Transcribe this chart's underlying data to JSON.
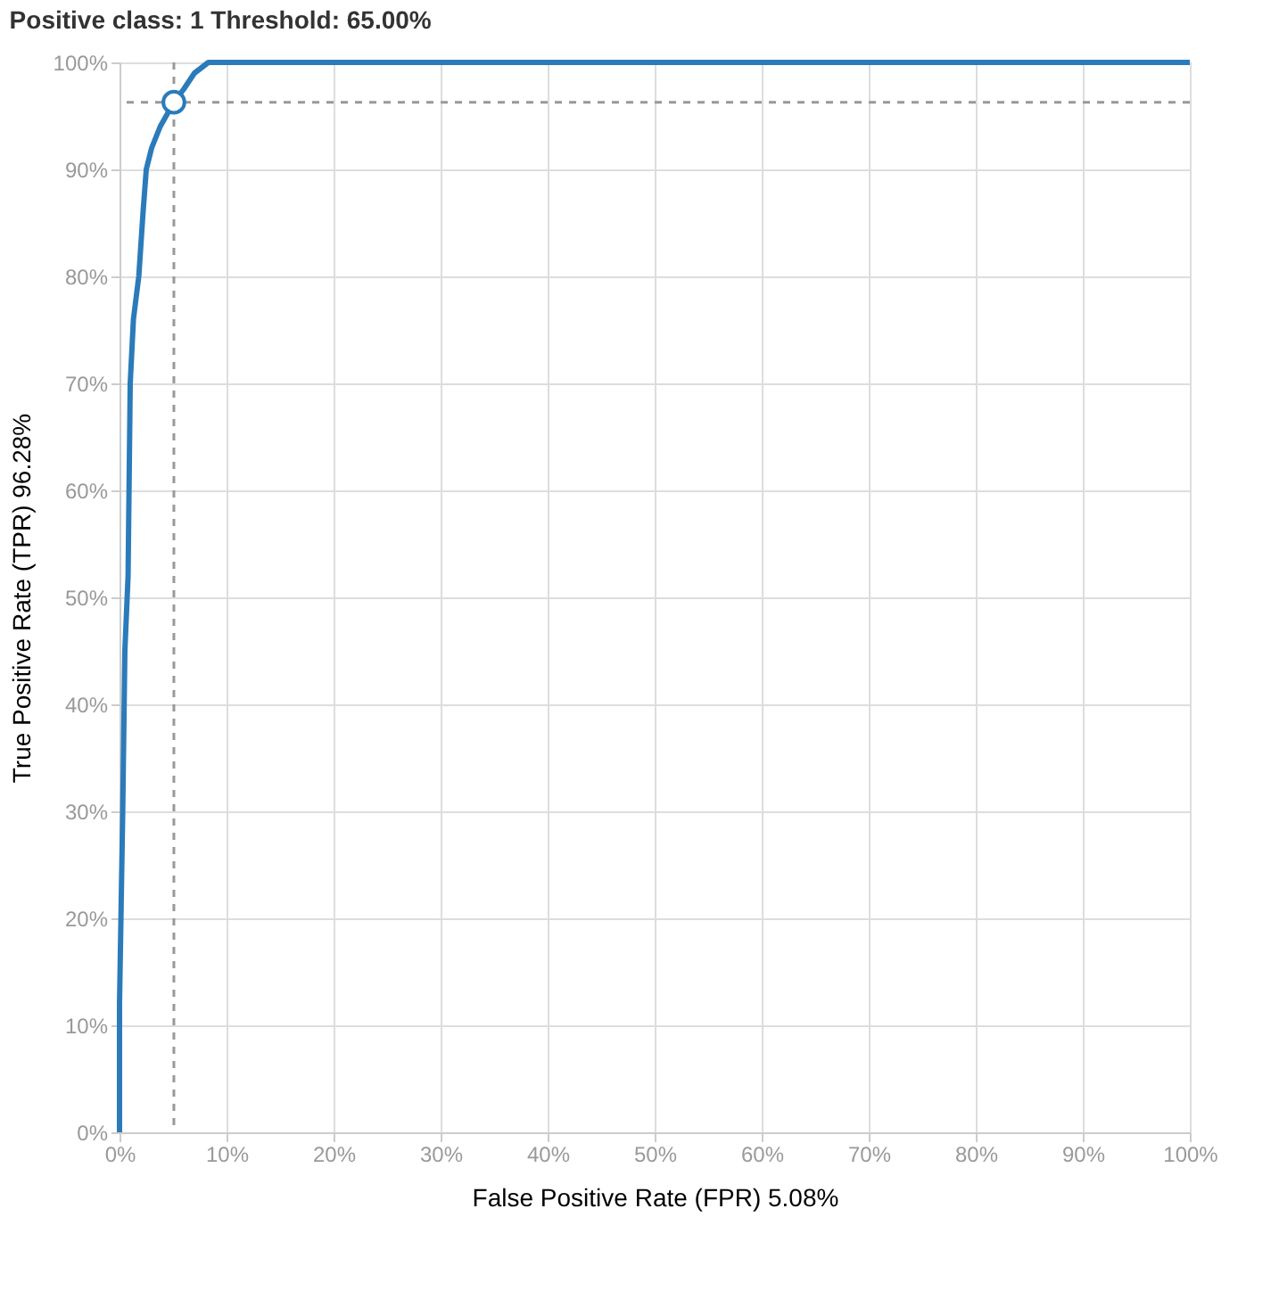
{
  "chart_data": {
    "type": "line",
    "title": "Positive class:    1      Threshold: 65.00%",
    "xlabel": "False Positive Rate (FPR)   5.08%",
    "ylabel": "True Positive Rate (TPR)   96.28%",
    "series": [
      {
        "color": "#2b7bba",
        "marker": "none",
        "x": [
          0,
          0,
          0.3,
          0.5,
          0.8,
          1.0,
          1.3,
          1.8,
          2.0,
          2.2,
          2.5,
          3.0,
          3.8,
          5.08,
          6.0,
          7.0,
          8.3,
          10,
          100
        ],
        "values": [
          0,
          12,
          30,
          45,
          52,
          70,
          76,
          80,
          83,
          86,
          90,
          92,
          94,
          96.28,
          97.5,
          99,
          100,
          100,
          100
        ]
      },
      {
        "type": "scatter",
        "color": "#2b7bba",
        "marker": "circle",
        "x": [
          5.08
        ],
        "values": [
          96.28
        ]
      }
    ],
    "ref_lines": [
      {
        "axis": "x",
        "value": 5.08,
        "color": "#999999",
        "line_style": "dashed"
      },
      {
        "axis": "y",
        "value": 96.28,
        "color": "#999999",
        "line_style": "dashed"
      }
    ],
    "xlim": [
      0,
      100
    ],
    "ylim": [
      0,
      100
    ],
    "xticks": [
      {
        "value": 0,
        "label": "0%"
      },
      {
        "value": 10,
        "label": "10%"
      },
      {
        "value": 20,
        "label": "20%"
      },
      {
        "value": 30,
        "label": "30%"
      },
      {
        "value": 40,
        "label": "40%"
      },
      {
        "value": 50,
        "label": "50%"
      },
      {
        "value": 60,
        "label": "60%"
      },
      {
        "value": 70,
        "label": "70%"
      },
      {
        "value": 80,
        "label": "80%"
      },
      {
        "value": 90,
        "label": "90%"
      },
      {
        "value": 100,
        "label": "100%"
      }
    ],
    "yticks": [
      {
        "value": 0,
        "label": "0%"
      },
      {
        "value": 10,
        "label": "10%"
      },
      {
        "value": 20,
        "label": "20%"
      },
      {
        "value": 30,
        "label": "30%"
      },
      {
        "value": 40,
        "label": "40%"
      },
      {
        "value": 50,
        "label": "50%"
      },
      {
        "value": 60,
        "label": "60%"
      },
      {
        "value": 70,
        "label": "70%"
      },
      {
        "value": 80,
        "label": "80%"
      },
      {
        "value": 90,
        "label": "90%"
      },
      {
        "value": 100,
        "label": "100%"
      }
    ],
    "grid": true
  }
}
